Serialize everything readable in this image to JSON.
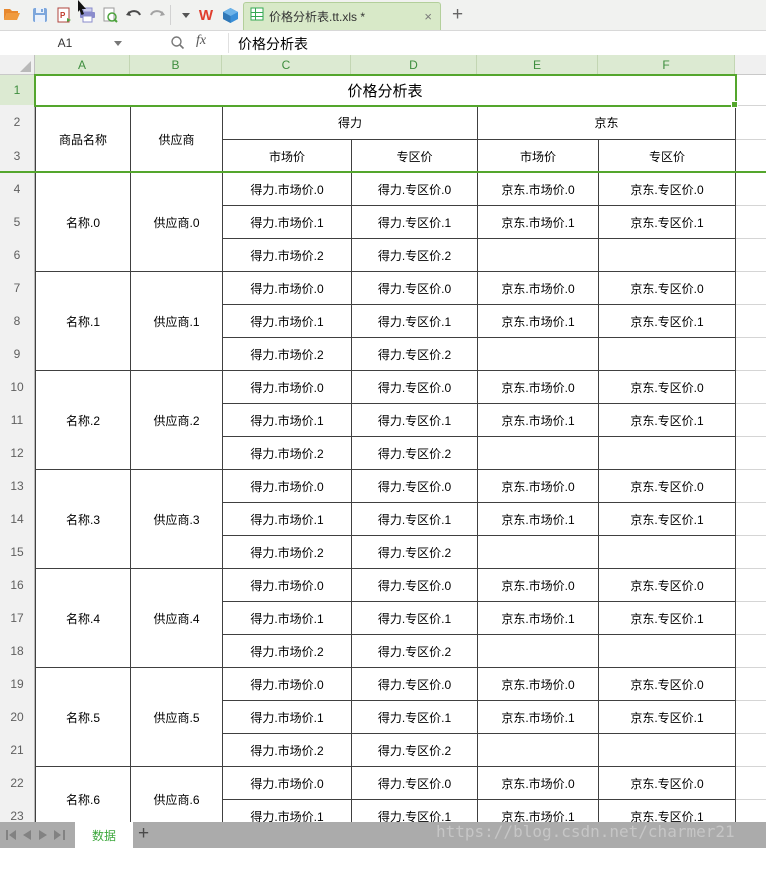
{
  "toolbar": {
    "icons": [
      "open-folder-icon",
      "save-icon",
      "export-pdf-icon",
      "print-icon",
      "print-preview-icon",
      "undo-icon",
      "redo-icon",
      "toolbar-dropdown-icon",
      "wps-writer-icon",
      "cube-app-icon"
    ]
  },
  "doc_tab": {
    "title": "价格分析表.tt.xls *",
    "close": "×",
    "new_tab": "+"
  },
  "formula_bar": {
    "name_box": "A1",
    "fx": "fx",
    "content": "价格分析表"
  },
  "sheet": {
    "columns": [
      "A",
      "B",
      "C",
      "D",
      "E",
      "F"
    ],
    "row_numbers": [
      1,
      2,
      3,
      4,
      5,
      6,
      7,
      8,
      9,
      10,
      11,
      12,
      13,
      14,
      15,
      16,
      17,
      18,
      19,
      20,
      21,
      22,
      23
    ],
    "title": "价格分析表",
    "header": {
      "product": "商品名称",
      "supplier": "供应商",
      "group1": "得力",
      "group2": "京东",
      "market": "市场价",
      "zone": "专区价"
    },
    "products": [
      {
        "name": "名称.0",
        "supplier": "供应商.0",
        "rows": [
          [
            "得力.市场价.0",
            "得力.专区价.0",
            "京东.市场价.0",
            "京东.专区价.0"
          ],
          [
            "得力.市场价.1",
            "得力.专区价.1",
            "京东.市场价.1",
            "京东.专区价.1"
          ],
          [
            "得力.市场价.2",
            "得力.专区价.2",
            "",
            ""
          ]
        ]
      },
      {
        "name": "名称.1",
        "supplier": "供应商.1",
        "rows": [
          [
            "得力.市场价.0",
            "得力.专区价.0",
            "京东.市场价.0",
            "京东.专区价.0"
          ],
          [
            "得力.市场价.1",
            "得力.专区价.1",
            "京东.市场价.1",
            "京东.专区价.1"
          ],
          [
            "得力.市场价.2",
            "得力.专区价.2",
            "",
            ""
          ]
        ]
      },
      {
        "name": "名称.2",
        "supplier": "供应商.2",
        "rows": [
          [
            "得力.市场价.0",
            "得力.专区价.0",
            "京东.市场价.0",
            "京东.专区价.0"
          ],
          [
            "得力.市场价.1",
            "得力.专区价.1",
            "京东.市场价.1",
            "京东.专区价.1"
          ],
          [
            "得力.市场价.2",
            "得力.专区价.2",
            "",
            ""
          ]
        ]
      },
      {
        "name": "名称.3",
        "supplier": "供应商.3",
        "rows": [
          [
            "得力.市场价.0",
            "得力.专区价.0",
            "京东.市场价.0",
            "京东.专区价.0"
          ],
          [
            "得力.市场价.1",
            "得力.专区价.1",
            "京东.市场价.1",
            "京东.专区价.1"
          ],
          [
            "得力.市场价.2",
            "得力.专区价.2",
            "",
            ""
          ]
        ]
      },
      {
        "name": "名称.4",
        "supplier": "供应商.4",
        "rows": [
          [
            "得力.市场价.0",
            "得力.专区价.0",
            "京东.市场价.0",
            "京东.专区价.0"
          ],
          [
            "得力.市场价.1",
            "得力.专区价.1",
            "京东.市场价.1",
            "京东.专区价.1"
          ],
          [
            "得力.市场价.2",
            "得力.专区价.2",
            "",
            ""
          ]
        ]
      },
      {
        "name": "名称.5",
        "supplier": "供应商.5",
        "rows": [
          [
            "得力.市场价.0",
            "得力.专区价.0",
            "京东.市场价.0",
            "京东.专区价.0"
          ],
          [
            "得力.市场价.1",
            "得力.专区价.1",
            "京东.市场价.1",
            "京东.专区价.1"
          ],
          [
            "得力.市场价.2",
            "得力.专区价.2",
            "",
            ""
          ]
        ]
      },
      {
        "name": "名称.6",
        "supplier": "供应商.6",
        "rows": [
          [
            "得力.市场价.0",
            "得力.专区价.0",
            "京东.市场价.0",
            "京东.专区价.0"
          ],
          [
            "得力.市场价.1",
            "得力.专区价.1",
            "京东.市场价.1",
            "京东.专区价.1"
          ]
        ]
      }
    ]
  },
  "sheet_bar": {
    "tab": "数据",
    "add": "+"
  },
  "watermark": "https://blog.csdn.net/charmer21",
  "colors": {
    "accent_green": "#54a62d",
    "header_green_bg": "#dcead2",
    "header_green_text": "#3e8e3e",
    "doc_tab_bg": "#d8e9c8",
    "sheet_bar_bg": "#ababab",
    "sheet_tab_text": "#3da73d",
    "cell_border": "#404040"
  }
}
